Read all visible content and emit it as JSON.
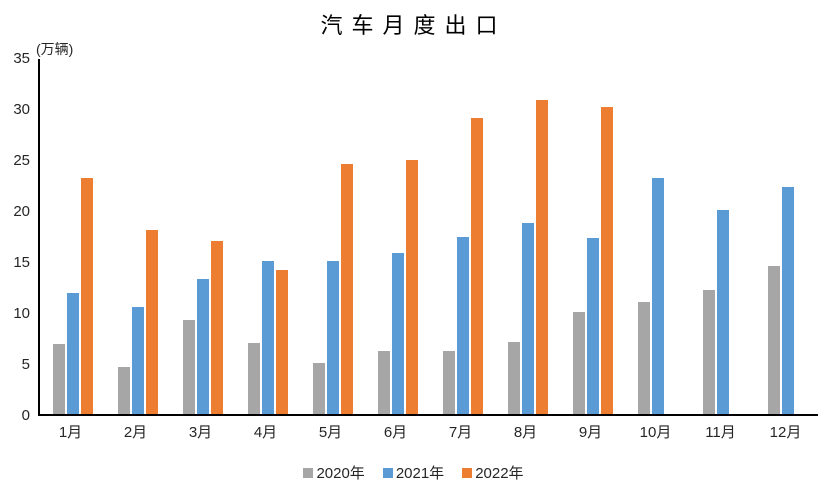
{
  "chart": {
    "title": "汽车月度出口",
    "unit_label": "(万辆)"
  },
  "chart_data": {
    "type": "bar",
    "title": "汽车月度出口",
    "ylabel": "(万辆)",
    "xlabel": "",
    "categories": [
      "1月",
      "2月",
      "3月",
      "4月",
      "5月",
      "6月",
      "7月",
      "8月",
      "9月",
      "10月",
      "11月",
      "12月"
    ],
    "series": [
      {
        "name": "2020年",
        "color": "#a6a6a6",
        "values": [
          6.9,
          4.6,
          9.2,
          7.0,
          5.0,
          6.2,
          6.2,
          7.1,
          10.0,
          11.0,
          12.2,
          14.5
        ]
      },
      {
        "name": "2021年",
        "color": "#5b9bd5",
        "values": [
          11.9,
          10.5,
          13.2,
          15.0,
          15.0,
          15.8,
          17.4,
          18.7,
          17.3,
          23.1,
          20.0,
          22.3
        ]
      },
      {
        "name": "2022年",
        "color": "#ed7d31",
        "values": [
          23.1,
          18.0,
          17.0,
          14.1,
          24.5,
          24.9,
          29.0,
          30.8,
          30.1,
          null,
          null,
          null
        ]
      }
    ],
    "ylim": [
      0,
      35
    ],
    "y_tick_step": 5,
    "y_tick_labels": [
      "0",
      "5",
      "10",
      "15",
      "20",
      "25",
      "30",
      "35"
    ],
    "grid": false,
    "legend_position": "bottom",
    "axis_color": "#000000",
    "tick_label_color": "#262626"
  }
}
